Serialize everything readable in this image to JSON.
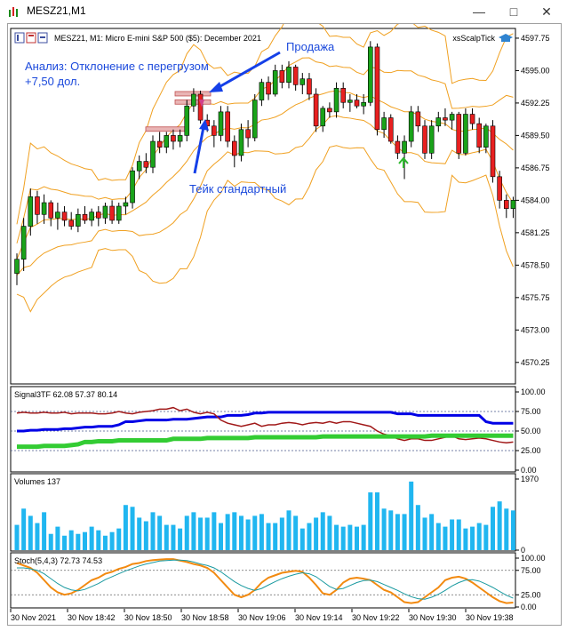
{
  "window": {
    "title": "MESZ21,M1"
  },
  "main_chart": {
    "header": "MESZ21, M1:  Micro E-mini S&P 500 ($5): December 2021",
    "indicator_name": "xsScalpTick",
    "annotations": {
      "analysis_line1": "Анализ: Отклонение с перегрузом",
      "analysis_line2": "+7,50 дол.",
      "sell": "Продажа",
      "take": "Тейк стандартный"
    },
    "y_ticks": [
      "4597.75",
      "4595.00",
      "4592.25",
      "4589.50",
      "4586.75",
      "4584.00",
      "4581.25",
      "4578.50",
      "4575.75",
      "4573.00",
      "4570.25"
    ]
  },
  "signal_panel": {
    "header": "Signal3TF 62.08 57.37 80.14",
    "y_ticks": [
      "100.00",
      "75.00",
      "50.00",
      "25.00",
      "0.00"
    ]
  },
  "volume_panel": {
    "header": "Volumes 137",
    "y_ticks": [
      "1970",
      "0"
    ]
  },
  "stoch_panel": {
    "header": "Stoch(5,4,3) 72.73 74.53",
    "y_ticks": [
      "100.00",
      "75.00",
      "25.00",
      "0.00"
    ]
  },
  "x_axis": {
    "labels": [
      "30 Nov 2021",
      "30 Nov 18:42",
      "30 Nov 18:50",
      "30 Nov 18:58",
      "30 Nov 19:06",
      "30 Nov 19:14",
      "30 Nov 19:22",
      "30 Nov 19:30",
      "30 Nov 19:38"
    ]
  },
  "chart_data": [
    {
      "type": "candlestick",
      "title": "MESZ21, M1:  Micro E-mini S&P 500 ($5): December 2021",
      "ylim": [
        4568.5,
        4598.5
      ],
      "candles": [
        {
          "o": 4577.8,
          "h": 4579.5,
          "l": 4576.8,
          "c": 4579.0
        },
        {
          "o": 4579.0,
          "h": 4582.5,
          "l": 4578.0,
          "c": 4581.8
        },
        {
          "o": 4581.8,
          "h": 4585.0,
          "l": 4581.0,
          "c": 4584.3
        },
        {
          "o": 4584.3,
          "h": 4584.8,
          "l": 4582.0,
          "c": 4582.8
        },
        {
          "o": 4582.8,
          "h": 4584.5,
          "l": 4582.0,
          "c": 4583.8
        },
        {
          "o": 4583.8,
          "h": 4584.0,
          "l": 4581.8,
          "c": 4582.5
        },
        {
          "o": 4582.5,
          "h": 4583.8,
          "l": 4581.5,
          "c": 4583.0
        },
        {
          "o": 4583.0,
          "h": 4583.5,
          "l": 4581.8,
          "c": 4582.3
        },
        {
          "o": 4582.3,
          "h": 4583.0,
          "l": 4581.5,
          "c": 4581.8
        },
        {
          "o": 4581.8,
          "h": 4583.3,
          "l": 4581.3,
          "c": 4582.8
        },
        {
          "o": 4582.8,
          "h": 4583.5,
          "l": 4582.0,
          "c": 4582.3
        },
        {
          "o": 4582.3,
          "h": 4583.3,
          "l": 4581.8,
          "c": 4583.0
        },
        {
          "o": 4583.0,
          "h": 4583.5,
          "l": 4581.8,
          "c": 4582.5
        },
        {
          "o": 4582.5,
          "h": 4583.8,
          "l": 4582.0,
          "c": 4583.5
        },
        {
          "o": 4583.5,
          "h": 4584.0,
          "l": 4582.0,
          "c": 4582.3
        },
        {
          "o": 4582.3,
          "h": 4583.8,
          "l": 4582.0,
          "c": 4583.5
        },
        {
          "o": 4583.5,
          "h": 4584.3,
          "l": 4582.8,
          "c": 4583.8
        },
        {
          "o": 4583.8,
          "h": 4586.8,
          "l": 4583.3,
          "c": 4586.5
        },
        {
          "o": 4586.5,
          "h": 4587.8,
          "l": 4585.8,
          "c": 4587.3
        },
        {
          "o": 4587.3,
          "h": 4588.0,
          "l": 4586.3,
          "c": 4586.8
        },
        {
          "o": 4586.8,
          "h": 4589.5,
          "l": 4586.3,
          "c": 4589.0
        },
        {
          "o": 4589.0,
          "h": 4589.8,
          "l": 4588.0,
          "c": 4588.5
        },
        {
          "o": 4588.5,
          "h": 4589.8,
          "l": 4588.0,
          "c": 4589.5
        },
        {
          "o": 4589.5,
          "h": 4590.0,
          "l": 4588.3,
          "c": 4589.0
        },
        {
          "o": 4589.0,
          "h": 4590.0,
          "l": 4588.5,
          "c": 4589.5
        },
        {
          "o": 4589.5,
          "h": 4592.5,
          "l": 4589.0,
          "c": 4592.0
        },
        {
          "o": 4592.0,
          "h": 4593.5,
          "l": 4591.5,
          "c": 4593.0
        },
        {
          "o": 4593.0,
          "h": 4593.3,
          "l": 4590.5,
          "c": 4590.8
        },
        {
          "o": 4590.8,
          "h": 4591.3,
          "l": 4589.8,
          "c": 4590.3
        },
        {
          "o": 4590.3,
          "h": 4590.8,
          "l": 4588.5,
          "c": 4589.5
        },
        {
          "o": 4589.5,
          "h": 4592.0,
          "l": 4589.0,
          "c": 4591.5
        },
        {
          "o": 4591.5,
          "h": 4592.0,
          "l": 4588.5,
          "c": 4589.0
        },
        {
          "o": 4589.0,
          "h": 4589.5,
          "l": 4586.8,
          "c": 4587.8
        },
        {
          "o": 4587.8,
          "h": 4590.5,
          "l": 4587.3,
          "c": 4590.0
        },
        {
          "o": 4590.0,
          "h": 4590.8,
          "l": 4588.5,
          "c": 4589.3
        },
        {
          "o": 4589.3,
          "h": 4593.0,
          "l": 4589.0,
          "c": 4592.5
        },
        {
          "o": 4592.5,
          "h": 4594.3,
          "l": 4592.0,
          "c": 4594.0
        },
        {
          "o": 4594.0,
          "h": 4594.5,
          "l": 4592.5,
          "c": 4593.0
        },
        {
          "o": 4593.0,
          "h": 4595.5,
          "l": 4592.8,
          "c": 4595.0
        },
        {
          "o": 4595.0,
          "h": 4595.5,
          "l": 4593.5,
          "c": 4594.0
        },
        {
          "o": 4594.0,
          "h": 4595.8,
          "l": 4593.5,
          "c": 4595.3
        },
        {
          "o": 4595.3,
          "h": 4595.5,
          "l": 4593.3,
          "c": 4593.8
        },
        {
          "o": 4593.8,
          "h": 4594.8,
          "l": 4593.0,
          "c": 4594.3
        },
        {
          "o": 4594.3,
          "h": 4594.8,
          "l": 4592.5,
          "c": 4593.0
        },
        {
          "o": 4593.0,
          "h": 4593.5,
          "l": 4589.8,
          "c": 4590.3
        },
        {
          "o": 4590.3,
          "h": 4592.0,
          "l": 4589.8,
          "c": 4591.8
        },
        {
          "o": 4591.8,
          "h": 4592.3,
          "l": 4591.0,
          "c": 4591.5
        },
        {
          "o": 4591.5,
          "h": 4594.0,
          "l": 4591.0,
          "c": 4593.5
        },
        {
          "o": 4593.5,
          "h": 4594.0,
          "l": 4591.8,
          "c": 4592.3
        },
        {
          "o": 4592.3,
          "h": 4593.0,
          "l": 4591.5,
          "c": 4592.5
        },
        {
          "o": 4592.5,
          "h": 4593.0,
          "l": 4591.8,
          "c": 4592.0
        },
        {
          "o": 4592.0,
          "h": 4593.0,
          "l": 4591.3,
          "c": 4592.3
        },
        {
          "o": 4592.3,
          "h": 4597.5,
          "l": 4592.0,
          "c": 4597.0
        },
        {
          "o": 4597.0,
          "h": 4597.3,
          "l": 4589.5,
          "c": 4590.0
        },
        {
          "o": 4590.0,
          "h": 4591.5,
          "l": 4589.3,
          "c": 4591.0
        },
        {
          "o": 4591.0,
          "h": 4591.3,
          "l": 4588.8,
          "c": 4589.0
        },
        {
          "o": 4589.0,
          "h": 4589.5,
          "l": 4587.5,
          "c": 4588.0
        },
        {
          "o": 4588.0,
          "h": 4589.5,
          "l": 4585.8,
          "c": 4589.0
        },
        {
          "o": 4589.0,
          "h": 4592.0,
          "l": 4588.5,
          "c": 4591.5
        },
        {
          "o": 4591.5,
          "h": 4592.0,
          "l": 4589.8,
          "c": 4590.3
        },
        {
          "o": 4590.3,
          "h": 4590.8,
          "l": 4587.5,
          "c": 4588.0
        },
        {
          "o": 4588.0,
          "h": 4590.8,
          "l": 4587.5,
          "c": 4590.3
        },
        {
          "o": 4590.3,
          "h": 4591.5,
          "l": 4589.8,
          "c": 4591.0
        },
        {
          "o": 4591.0,
          "h": 4591.8,
          "l": 4590.3,
          "c": 4590.8
        },
        {
          "o": 4590.8,
          "h": 4591.5,
          "l": 4590.0,
          "c": 4591.3
        },
        {
          "o": 4591.3,
          "h": 4591.5,
          "l": 4587.5,
          "c": 4588.0
        },
        {
          "o": 4588.0,
          "h": 4591.8,
          "l": 4587.8,
          "c": 4591.3
        },
        {
          "o": 4591.3,
          "h": 4591.8,
          "l": 4590.0,
          "c": 4590.5
        },
        {
          "o": 4590.5,
          "h": 4591.0,
          "l": 4588.0,
          "c": 4588.5
        },
        {
          "o": 4588.5,
          "h": 4590.5,
          "l": 4588.0,
          "c": 4590.3
        },
        {
          "o": 4590.3,
          "h": 4590.8,
          "l": 4585.5,
          "c": 4586.0
        },
        {
          "o": 4586.0,
          "h": 4586.5,
          "l": 4583.3,
          "c": 4584.0
        },
        {
          "o": 4584.0,
          "h": 4584.5,
          "l": 4582.5,
          "c": 4583.3
        },
        {
          "o": 4583.3,
          "h": 4584.3,
          "l": 4582.5,
          "c": 4584.0
        }
      ]
    },
    {
      "type": "line",
      "title": "Signal3TF 62.08 57.37 80.14",
      "ylim": [
        0,
        100
      ],
      "series": [
        {
          "values": [
            50,
            50,
            51,
            51,
            52,
            52,
            52,
            53,
            53,
            54,
            55,
            55,
            56,
            56,
            56,
            58,
            62,
            62,
            63,
            64,
            64,
            64,
            64,
            65,
            65,
            65,
            66,
            67,
            68,
            68,
            68,
            70,
            70,
            70,
            71,
            73,
            73,
            74,
            74,
            74,
            74,
            74,
            74,
            74,
            74,
            74,
            74,
            74,
            74,
            74,
            74,
            74,
            74,
            74,
            74,
            74,
            72,
            72,
            72,
            70,
            70,
            70,
            70,
            70,
            70,
            70,
            70,
            70,
            70,
            62,
            60,
            60,
            60,
            60
          ]
        },
        {
          "values": [
            73,
            74,
            73,
            73,
            74,
            73,
            73,
            74,
            72,
            73,
            73,
            73,
            72,
            72,
            73,
            75,
            73,
            72,
            74,
            75,
            76,
            78,
            78,
            80,
            76,
            78,
            74,
            72,
            74,
            72,
            64,
            60,
            58,
            56,
            58,
            60,
            56,
            58,
            58,
            60,
            61,
            60,
            58,
            60,
            61,
            60,
            62,
            60,
            62,
            62,
            60,
            58,
            56,
            50,
            46,
            44,
            40,
            38,
            40,
            40,
            38,
            38,
            40,
            42,
            44,
            40,
            39,
            40,
            41,
            40,
            38,
            36,
            35,
            36
          ]
        },
        {
          "values": [
            30,
            30,
            30,
            30,
            31,
            31,
            31,
            31,
            32,
            33,
            36,
            36,
            37,
            37,
            37,
            38,
            38,
            38,
            38,
            38,
            38,
            38,
            38,
            40,
            40,
            40,
            40,
            40,
            41,
            41,
            41,
            41,
            41,
            41,
            41,
            42,
            42,
            42,
            42,
            42,
            42,
            42,
            42,
            42,
            42,
            43,
            43,
            43,
            43,
            43,
            43,
            43,
            43,
            43,
            43,
            43,
            43,
            43,
            43,
            43,
            43,
            44,
            44,
            44,
            44,
            44,
            44,
            44,
            44,
            44,
            44,
            44,
            44,
            44
          ]
        }
      ]
    },
    {
      "type": "bar",
      "title": "Volumes 137",
      "ylim": [
        0,
        1970
      ],
      "values": [
        700,
        1150,
        950,
        750,
        1050,
        450,
        650,
        400,
        550,
        450,
        500,
        650,
        550,
        400,
        500,
        600,
        1250,
        1200,
        900,
        800,
        1050,
        950,
        700,
        700,
        600,
        950,
        1050,
        900,
        900,
        1050,
        750,
        1000,
        1050,
        950,
        850,
        950,
        1000,
        750,
        750,
        900,
        1100,
        950,
        600,
        750,
        900,
        1050,
        950,
        700,
        650,
        700,
        650,
        700,
        1600,
        1600,
        1150,
        1100,
        1000,
        1000,
        1900,
        1250,
        900,
        1000,
        750,
        650,
        850,
        850,
        600,
        650,
        750,
        700,
        1200,
        1350,
        1150,
        1100
      ]
    },
    {
      "type": "line",
      "title": "Stoch(5,4,3) 72.73 74.53",
      "ylim": [
        0,
        100
      ],
      "series": [
        {
          "values": [
            90,
            85,
            80,
            70,
            55,
            40,
            30,
            25,
            28,
            35,
            45,
            55,
            60,
            68,
            72,
            78,
            82,
            88,
            90,
            94,
            96,
            97,
            98,
            98,
            95,
            92,
            88,
            85,
            80,
            70,
            55,
            40,
            25,
            20,
            25,
            35,
            50,
            60,
            65,
            70,
            72,
            74,
            72,
            60,
            45,
            28,
            25,
            35,
            50,
            58,
            60,
            58,
            55,
            45,
            35,
            30,
            20,
            10,
            8,
            10,
            20,
            30,
            40,
            55,
            60,
            62,
            58,
            50,
            40,
            30,
            20,
            12,
            8,
            9
          ]
        },
        {
          "values": [
            80,
            80,
            78,
            75,
            68,
            58,
            48,
            40,
            35,
            33,
            36,
            42,
            48,
            56,
            62,
            68,
            74,
            79,
            84,
            88,
            91,
            94,
            95,
            96,
            96,
            95,
            92,
            88,
            85,
            80,
            72,
            62,
            52,
            44,
            38,
            34,
            38,
            45,
            52,
            58,
            63,
            67,
            70,
            68,
            62,
            52,
            42,
            36,
            38,
            44,
            50,
            54,
            55,
            52,
            46,
            40,
            34,
            27,
            21,
            17,
            16,
            20,
            26,
            34,
            43,
            50,
            55,
            56,
            53,
            47,
            40,
            32,
            24,
            18
          ]
        }
      ]
    }
  ],
  "colors": {
    "bull": "#1aa31a",
    "bear": "#e82020",
    "envelope": "#f0a020",
    "signal_blue": "#0000e6",
    "signal_red": "#a01818",
    "signal_green": "#33cc33",
    "volume": "#20b6f0",
    "stoch_main": "#f28a10",
    "stoch_signal": "#1a9aa0",
    "annotation": "#1c4adc",
    "arrow": "#1540e8",
    "up_arrow": "#2db82d"
  }
}
